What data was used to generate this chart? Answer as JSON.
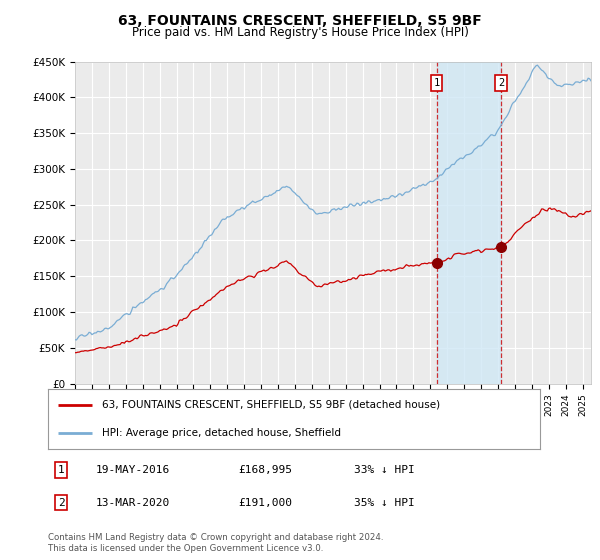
{
  "title": "63, FOUNTAINS CRESCENT, SHEFFIELD, S5 9BF",
  "subtitle": "Price paid vs. HM Land Registry's House Price Index (HPI)",
  "ylim": [
    0,
    450000
  ],
  "yticks": [
    0,
    50000,
    100000,
    150000,
    200000,
    250000,
    300000,
    350000,
    400000,
    450000
  ],
  "ytick_labels": [
    "£0",
    "£50K",
    "£100K",
    "£150K",
    "£200K",
    "£250K",
    "£300K",
    "£350K",
    "£400K",
    "£450K"
  ],
  "xlim_start": 1995.0,
  "xlim_end": 2025.5,
  "hpi_color": "#7aadd4",
  "property_color": "#cc0000",
  "bg_color": "#ffffff",
  "plot_bg_color": "#ebebeb",
  "grid_color": "#ffffff",
  "shade_color": "#d0e8f5",
  "transactions": [
    {
      "date_num": 2016.37,
      "price": 168995,
      "label": "1",
      "date_str": "19-MAY-2016",
      "pct": "33% ↓ HPI"
    },
    {
      "date_num": 2020.19,
      "price": 191000,
      "label": "2",
      "date_str": "13-MAR-2020",
      "pct": "35% ↓ HPI"
    }
  ],
  "legend_property": "63, FOUNTAINS CRESCENT, SHEFFIELD, S5 9BF (detached house)",
  "legend_hpi": "HPI: Average price, detached house, Sheffield",
  "footnote": "Contains HM Land Registry data © Crown copyright and database right 2024.\nThis data is licensed under the Open Government Licence v3.0."
}
